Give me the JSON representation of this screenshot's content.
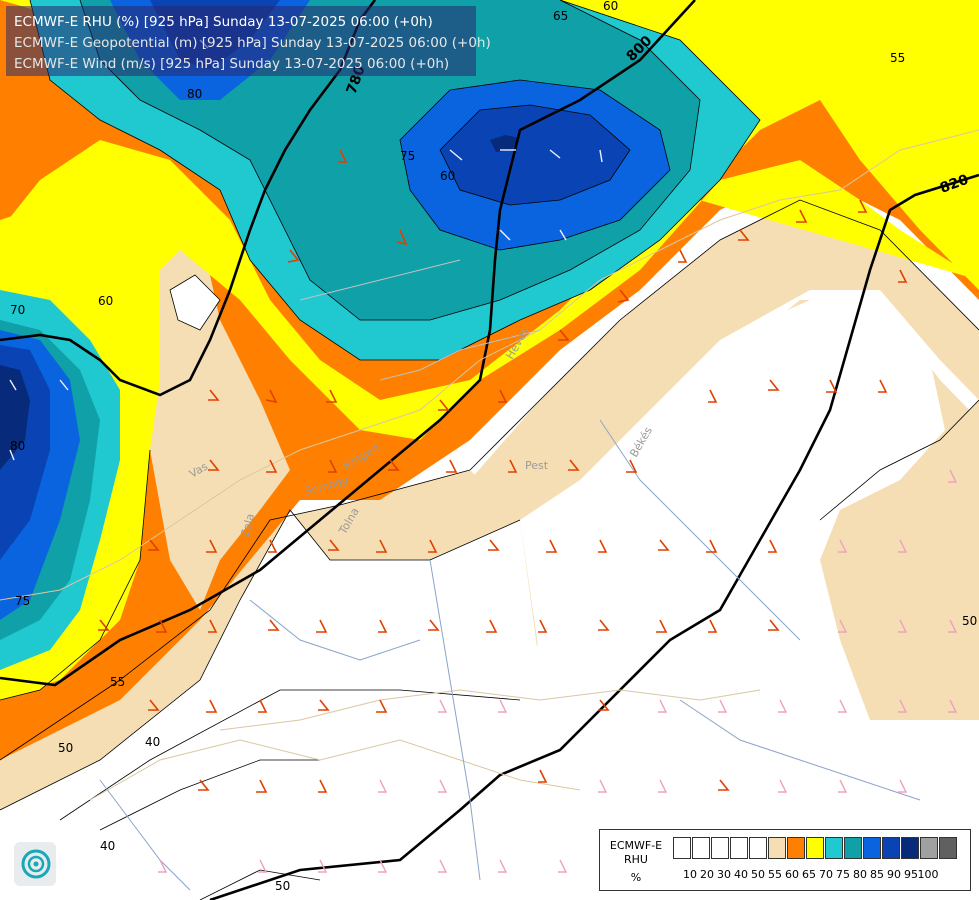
{
  "header": {
    "line1": "ECMWF-E RHU (%) [925 hPa] Sunday 13-07-2025 06:00 (+0h)",
    "line2": "ECMWF-E Geopotential (m) [925 hPa] Sunday 13-07-2025 06:00 (+0h)",
    "line3": "ECMWF-E Wind (m/s) [925 hPa] Sunday 13-07-2025 06:00 (+0h)"
  },
  "colors": {
    "white": "#ffffff",
    "tan": "#f5deb3",
    "orange": "#ff8000",
    "yellow": "#ffff00",
    "cyan": "#20c8d0",
    "teal": "#10a0a8",
    "blue": "#0a64e0",
    "darkblue": "#0a44b4",
    "navy": "#082a7a"
  },
  "legend": {
    "title_line1": "ECMWF-E",
    "title_line2": "RHU",
    "unit": "%",
    "ticks": [
      "10",
      "20",
      "30",
      "40",
      "50",
      "55",
      "60",
      "65",
      "70",
      "75",
      "80",
      "85",
      "90",
      "95",
      "100"
    ],
    "swatch_colors": [
      "#ffffff",
      "#ffffff",
      "#ffffff",
      "#ffffff",
      "#ffffff",
      "#f5deb3",
      "#ff8000",
      "#ffff00",
      "#20c8d0",
      "#10a0a8",
      "#0a64e0",
      "#0a44b4",
      "#082a7a",
      "#a0a0a0",
      "#606060"
    ]
  },
  "geopotential_labels": [
    "780",
    "800",
    "820"
  ],
  "rhu_contour_labels": [
    "65",
    "60",
    "55",
    "60",
    "80",
    "75",
    "70",
    "60",
    "80",
    "75",
    "55",
    "50",
    "40",
    "40",
    "50",
    "50"
  ],
  "place_labels": [
    "Pest",
    "Békés",
    "Tolna",
    "Somogy",
    "Zala",
    "Vas",
    "Heves",
    "Szeged"
  ],
  "logo": {
    "icon": "ecmwf-swirl-logo"
  }
}
